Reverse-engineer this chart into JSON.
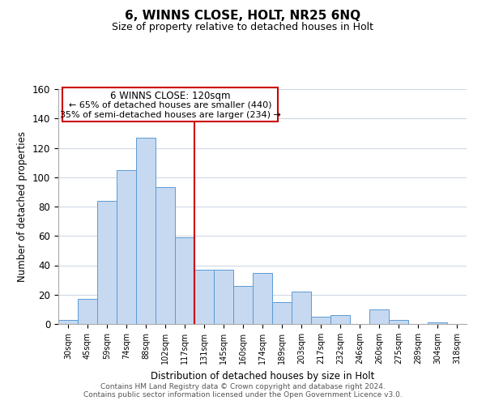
{
  "title": "6, WINNS CLOSE, HOLT, NR25 6NQ",
  "subtitle": "Size of property relative to detached houses in Holt",
  "xlabel": "Distribution of detached houses by size in Holt",
  "ylabel": "Number of detached properties",
  "bar_labels": [
    "30sqm",
    "45sqm",
    "59sqm",
    "74sqm",
    "88sqm",
    "102sqm",
    "117sqm",
    "131sqm",
    "145sqm",
    "160sqm",
    "174sqm",
    "189sqm",
    "203sqm",
    "217sqm",
    "232sqm",
    "246sqm",
    "260sqm",
    "275sqm",
    "289sqm",
    "304sqm",
    "318sqm"
  ],
  "bar_values": [
    3,
    17,
    84,
    105,
    127,
    93,
    59,
    37,
    37,
    26,
    35,
    15,
    22,
    5,
    6,
    0,
    10,
    3,
    0,
    1,
    0
  ],
  "bar_color": "#c6d9f0",
  "bar_edge_color": "#5b9bd5",
  "vline_x_index": 6,
  "vline_color": "#cc0000",
  "ylim": [
    0,
    160
  ],
  "yticks": [
    0,
    20,
    40,
    60,
    80,
    100,
    120,
    140,
    160
  ],
  "annotation_title": "6 WINNS CLOSE: 120sqm",
  "annotation_line1": "← 65% of detached houses are smaller (440)",
  "annotation_line2": "35% of semi-detached houses are larger (234) →",
  "annotation_box_color": "#ffffff",
  "annotation_box_edge": "#cc0000",
  "footer_line1": "Contains HM Land Registry data © Crown copyright and database right 2024.",
  "footer_line2": "Contains public sector information licensed under the Open Government Licence v3.0.",
  "background_color": "#ffffff",
  "grid_color": "#d0d8e4"
}
